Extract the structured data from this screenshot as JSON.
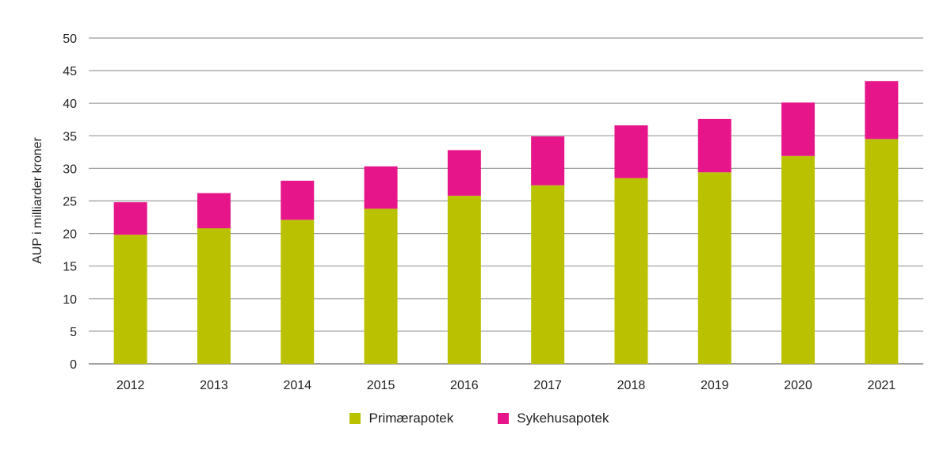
{
  "chart_data": {
    "type": "bar",
    "stacked": true,
    "title": "",
    "xlabel": "",
    "ylabel": "AUP i milliarder kroner",
    "ylim": [
      0,
      50
    ],
    "yticks": [
      0,
      5,
      10,
      15,
      20,
      25,
      30,
      35,
      40,
      45,
      50
    ],
    "grid": true,
    "legend_position": "bottom-center",
    "categories": [
      "2012",
      "2013",
      "2014",
      "2015",
      "2016",
      "2017",
      "2018",
      "2019",
      "2020",
      "2021"
    ],
    "series": [
      {
        "name": "Primærapotek",
        "color": "#bac200",
        "values": [
          19.8,
          20.8,
          22.1,
          23.8,
          25.8,
          27.4,
          28.5,
          29.4,
          31.9,
          34.5
        ]
      },
      {
        "name": "Sykehusapotek",
        "color": "#e6168a",
        "values": [
          5.0,
          5.4,
          6.0,
          6.5,
          7.0,
          7.5,
          8.1,
          8.2,
          8.2,
          8.9
        ]
      }
    ]
  }
}
